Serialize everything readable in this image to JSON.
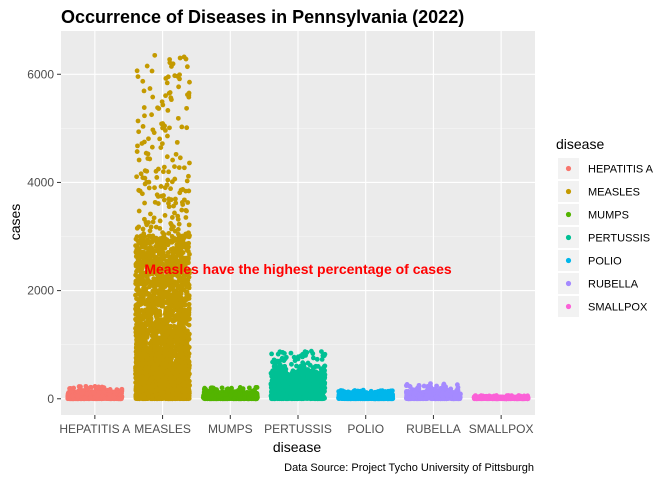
{
  "chart_data": {
    "type": "scatter",
    "subtype": "jitter",
    "title": "Occurrence of Diseases in Pennsylvania (2022)",
    "xlabel": "disease",
    "ylabel": "cases",
    "caption": "Data Source: Project Tycho University of Pittsburgh",
    "categories": [
      "HEPATITIS A",
      "MEASLES",
      "MUMPS",
      "PERTUSSIS",
      "POLIO",
      "RUBELLA",
      "SMALLPOX"
    ],
    "ylim": [
      -300,
      6800
    ],
    "yticks": [
      0,
      2000,
      4000,
      6000
    ],
    "ytick_labels": [
      "0",
      "2000",
      "4000",
      "6000"
    ],
    "grid": true,
    "legend_title": "disease",
    "legend_position": "right",
    "annotation": {
      "text": "Measles have the highest percentage of cases",
      "color": "#FF0000",
      "x_category": "PERTUSSIS",
      "y": 2400
    },
    "series": [
      {
        "name": "HEPATITIS A",
        "color": "#F8766D",
        "typical_max": 120,
        "max": 230,
        "count": 700
      },
      {
        "name": "MEASLES",
        "color": "#C49A00",
        "typical_max": 3000,
        "max": 6350,
        "count": 2600
      },
      {
        "name": "MUMPS",
        "color": "#53B400",
        "typical_max": 110,
        "max": 210,
        "count": 700
      },
      {
        "name": "PERTUSSIS",
        "color": "#00C094",
        "typical_max": 500,
        "max": 880,
        "count": 1100
      },
      {
        "name": "POLIO",
        "color": "#00B6EB",
        "typical_max": 110,
        "max": 160,
        "count": 700
      },
      {
        "name": "RUBELLA",
        "color": "#A58AFF",
        "typical_max": 120,
        "max": 280,
        "count": 700
      },
      {
        "name": "SMALLPOX",
        "color": "#FB61D7",
        "typical_max": 35,
        "max": 60,
        "count": 500
      }
    ]
  }
}
